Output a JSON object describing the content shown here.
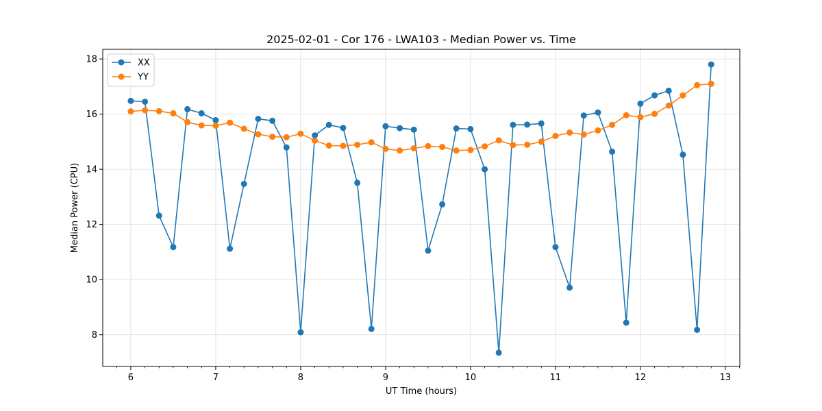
{
  "chart_data": {
    "type": "line",
    "title": "2025-02-01 - Cor 176 - LWA103 - Median Power vs. Time",
    "xlabel": "UT Time (hours)",
    "ylabel": "Median Power (CPU)",
    "xlim": [
      5.67,
      13.17
    ],
    "ylim": [
      6.85,
      18.35
    ],
    "x_ticks": [
      6,
      7,
      8,
      9,
      10,
      11,
      12,
      13
    ],
    "y_ticks": [
      8,
      10,
      12,
      14,
      16,
      18
    ],
    "grid": true,
    "legend_position": "top-left",
    "x": [
      6.0,
      6.167,
      6.333,
      6.5,
      6.667,
      6.833,
      7.0,
      7.167,
      7.333,
      7.5,
      7.667,
      7.833,
      8.0,
      8.167,
      8.333,
      8.5,
      8.667,
      8.833,
      9.0,
      9.167,
      9.333,
      9.5,
      9.667,
      9.833,
      10.0,
      10.167,
      10.333,
      10.5,
      10.667,
      10.833,
      11.0,
      11.167,
      11.333,
      11.5,
      11.667,
      11.833,
      12.0,
      12.167,
      12.333,
      12.5,
      12.667,
      12.833
    ],
    "series": [
      {
        "name": "XX",
        "color": "#1f77b4",
        "values": [
          16.48,
          16.45,
          12.32,
          11.18,
          16.18,
          16.03,
          15.78,
          11.12,
          13.47,
          15.83,
          15.76,
          14.79,
          8.09,
          15.23,
          15.61,
          15.5,
          13.51,
          8.21,
          15.56,
          15.49,
          15.44,
          11.05,
          12.73,
          15.48,
          15.46,
          14.0,
          7.35,
          15.61,
          15.62,
          15.66,
          11.18,
          9.71,
          15.95,
          16.06,
          14.64,
          8.44,
          16.38,
          16.68,
          16.85,
          14.53,
          8.18,
          17.8
        ]
      },
      {
        "name": "YY",
        "color": "#ff7f0e",
        "values": [
          16.1,
          16.14,
          16.11,
          16.03,
          15.71,
          15.59,
          15.58,
          15.69,
          15.47,
          15.27,
          15.18,
          15.16,
          15.29,
          15.04,
          14.86,
          14.85,
          14.89,
          14.98,
          14.74,
          14.68,
          14.76,
          14.84,
          14.81,
          14.68,
          14.7,
          14.83,
          15.05,
          14.88,
          14.89,
          15.0,
          15.21,
          15.33,
          15.26,
          15.41,
          15.61,
          15.96,
          15.89,
          16.01,
          16.31,
          16.68,
          17.05,
          17.1
        ]
      }
    ]
  }
}
